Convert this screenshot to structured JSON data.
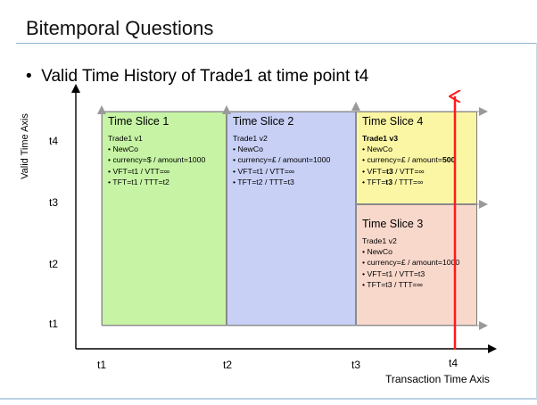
{
  "title": "Bitemporal Questions",
  "bullet": {
    "marker": "•",
    "text": "Valid Time History of Trade1 at time point t4"
  },
  "axes": {
    "y_label": "Valid Time Axis",
    "x_label": "Transaction Time Axis",
    "y_ticks": [
      "t4",
      "t3",
      "t2",
      "t1"
    ],
    "x_ticks": [
      "t1",
      "t2",
      "t3",
      "t4"
    ]
  },
  "slices": {
    "s1": {
      "heading": "Time Slice 1",
      "trade": "Trade1 v1",
      "line1": "• NewCo",
      "line2": "• currency=$ / amount=1000",
      "line3": "• VFT=t1 / VTT=∞",
      "line4": "• TFT=t1 / TTT=t2",
      "color": "#c6f4a4"
    },
    "s2": {
      "heading": "Time Slice 2",
      "trade": "Trade1 v2",
      "line1": "• NewCo",
      "line2": "• currency=£ / amount=1000",
      "line3": "• VFT=t1 / VTT=∞",
      "line4": "• TFT=t2 / TTT=t3",
      "color": "#c8d0f6"
    },
    "s4": {
      "heading": "Time Slice 4",
      "trade": "Trade1 v3",
      "line1": "• NewCo",
      "line2_prefix": "• currency=£ / amount=",
      "line2_bold": "500",
      "line3_prefix": "• VFT=",
      "line3_bold": "t3",
      "line3_suffix": " / VTT=∞",
      "line4_prefix": "• TFT=",
      "line4_bold": "t3",
      "line4_suffix": " / TTT=∞",
      "color": "#fbf6a4"
    },
    "s3": {
      "heading": "Time Slice 3",
      "trade": "Trade1 v2",
      "line1": "• NewCo",
      "line2": "• currency=£ / amount=1000",
      "line3": "• VFT=t1 / VTT=t3",
      "line4": "• TFT=t3 / TTT=∞",
      "color": "#f9d8cc"
    }
  },
  "colors": {
    "query_line": "#ff1a1a",
    "axis": "#000000",
    "guide": "#9a9a9a",
    "title_rule": "#8fb6d6"
  }
}
